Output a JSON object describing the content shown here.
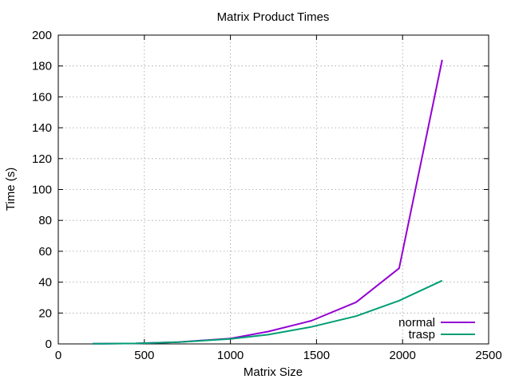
{
  "chart_data": {
    "type": "line",
    "title": "Matrix Product Times",
    "xlabel": "Matrix Size",
    "ylabel": "Time (s)",
    "xlim": [
      0,
      2500
    ],
    "ylim": [
      0,
      200
    ],
    "xticks": [
      0,
      500,
      1000,
      1500,
      2000,
      2500
    ],
    "yticks": [
      0,
      20,
      40,
      60,
      80,
      100,
      120,
      140,
      160,
      180,
      200
    ],
    "grid": true,
    "legend_position": "bottom-right",
    "series": [
      {
        "name": "normal",
        "color": "#9400d3",
        "x": [
          200,
          450,
          700,
          1000,
          1220,
          1470,
          1730,
          1980,
          2230
        ],
        "y": [
          0.1,
          0.3,
          1.2,
          3.5,
          8,
          15,
          27,
          49,
          184
        ]
      },
      {
        "name": "trasp",
        "color": "#009e73",
        "x": [
          200,
          450,
          700,
          1000,
          1220,
          1470,
          1730,
          1980,
          2230
        ],
        "y": [
          0.1,
          0.3,
          1.2,
          3.2,
          6,
          11,
          18,
          28,
          41
        ]
      }
    ]
  }
}
